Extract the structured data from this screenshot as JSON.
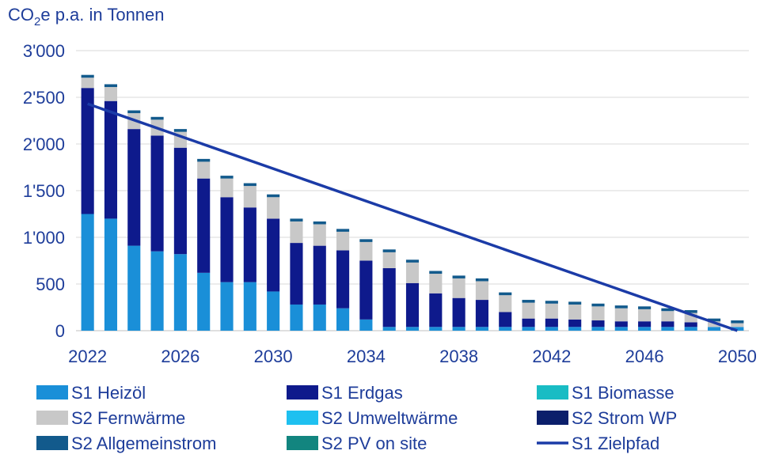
{
  "chart_data": {
    "type": "bar",
    "stacked": true,
    "ylabel_main": "CO",
    "ylabel_sub": "2",
    "ylabel_rest": "e p.a. in Tonnen",
    "ylim": [
      0,
      3000
    ],
    "yticks": [
      0,
      500,
      1000,
      1500,
      2000,
      2500,
      3000
    ],
    "ytick_labels": [
      "0",
      "500",
      "1'000",
      "1'500",
      "2'000",
      "2'500",
      "3'000"
    ],
    "categories": [
      2022,
      2023,
      2024,
      2025,
      2026,
      2027,
      2028,
      2029,
      2030,
      2031,
      2032,
      2033,
      2034,
      2035,
      2036,
      2037,
      2038,
      2039,
      2040,
      2041,
      2042,
      2043,
      2044,
      2045,
      2046,
      2047,
      2048,
      2049,
      2050
    ],
    "xtick_labels": [
      "2022",
      "2026",
      "2030",
      "2034",
      "2038",
      "2042",
      "2046",
      "2050"
    ],
    "grid": true,
    "legend_position": "bottom",
    "series": [
      {
        "name": "S1 Heizöl",
        "color": "#1a8fd8",
        "values": [
          1250,
          1200,
          910,
          850,
          820,
          620,
          520,
          520,
          420,
          280,
          280,
          240,
          120,
          40,
          40,
          40,
          40,
          40,
          40,
          40,
          40,
          40,
          40,
          40,
          40,
          40,
          40,
          40,
          40
        ]
      },
      {
        "name": "S1 Erdgas",
        "color": "#0e1a8c",
        "values": [
          1350,
          1260,
          1250,
          1240,
          1140,
          1010,
          910,
          800,
          780,
          660,
          630,
          620,
          630,
          630,
          470,
          360,
          310,
          290,
          160,
          90,
          90,
          80,
          70,
          60,
          60,
          60,
          50,
          0,
          0
        ]
      },
      {
        "name": "S1 Biomasse",
        "color": "#19bcc4",
        "values": [
          0,
          0,
          0,
          0,
          0,
          0,
          0,
          0,
          0,
          0,
          0,
          0,
          0,
          0,
          0,
          0,
          0,
          0,
          0,
          0,
          0,
          0,
          0,
          0,
          0,
          0,
          0,
          0,
          0
        ]
      },
      {
        "name": "S2 Fernwärme",
        "color": "#c8c8c8",
        "values": [
          110,
          150,
          170,
          170,
          170,
          180,
          200,
          230,
          230,
          230,
          230,
          200,
          200,
          170,
          220,
          210,
          210,
          200,
          180,
          170,
          160,
          160,
          150,
          140,
          130,
          110,
          100,
          60,
          40
        ]
      },
      {
        "name": "S2 Umweltwärme",
        "color": "#1ec0f0",
        "values": [
          0,
          0,
          0,
          0,
          0,
          0,
          0,
          0,
          0,
          0,
          0,
          0,
          0,
          0,
          0,
          0,
          0,
          0,
          0,
          0,
          0,
          0,
          0,
          0,
          0,
          0,
          0,
          0,
          0
        ]
      },
      {
        "name": "S2 Strom WP",
        "color": "#0b1f6b",
        "values": [
          0,
          0,
          0,
          0,
          0,
          0,
          0,
          0,
          0,
          0,
          0,
          0,
          0,
          0,
          0,
          0,
          0,
          0,
          0,
          0,
          0,
          0,
          0,
          0,
          0,
          0,
          0,
          0,
          0
        ]
      },
      {
        "name": "S2 Allgemeinstrom",
        "color": "#125a8c",
        "values": [
          30,
          30,
          30,
          30,
          30,
          30,
          30,
          30,
          30,
          30,
          30,
          30,
          30,
          30,
          30,
          30,
          30,
          30,
          30,
          30,
          30,
          30,
          30,
          30,
          30,
          30,
          30,
          30,
          30
        ]
      },
      {
        "name": "S2 PV on site",
        "color": "#12857f",
        "values": [
          0,
          0,
          0,
          0,
          0,
          0,
          0,
          0,
          0,
          0,
          0,
          0,
          0,
          0,
          0,
          0,
          0,
          0,
          0,
          0,
          0,
          0,
          0,
          0,
          0,
          0,
          0,
          0,
          0
        ]
      }
    ],
    "line": {
      "name": "S1 Zielpfad",
      "color": "#1b3ba7",
      "x": [
        2022,
        2050
      ],
      "y": [
        2430,
        0
      ]
    }
  },
  "legend": [
    {
      "label": "S1 Heizöl",
      "color": "#1a8fd8",
      "kind": "box"
    },
    {
      "label": "S1 Erdgas",
      "color": "#0e1a8c",
      "kind": "box"
    },
    {
      "label": "S1 Biomasse",
      "color": "#19bcc4",
      "kind": "box"
    },
    {
      "label": "S2 Fernwärme",
      "color": "#c8c8c8",
      "kind": "box"
    },
    {
      "label": "S2 Umweltwärme",
      "color": "#1ec0f0",
      "kind": "box"
    },
    {
      "label": "S2 Strom WP",
      "color": "#0b1f6b",
      "kind": "box"
    },
    {
      "label": "S2 Allgemeinstrom",
      "color": "#125a8c",
      "kind": "box"
    },
    {
      "label": "S2 PV on site",
      "color": "#12857f",
      "kind": "box"
    },
    {
      "label": "S1 Zielpfad",
      "color": "#1b3ba7",
      "kind": "line"
    }
  ]
}
